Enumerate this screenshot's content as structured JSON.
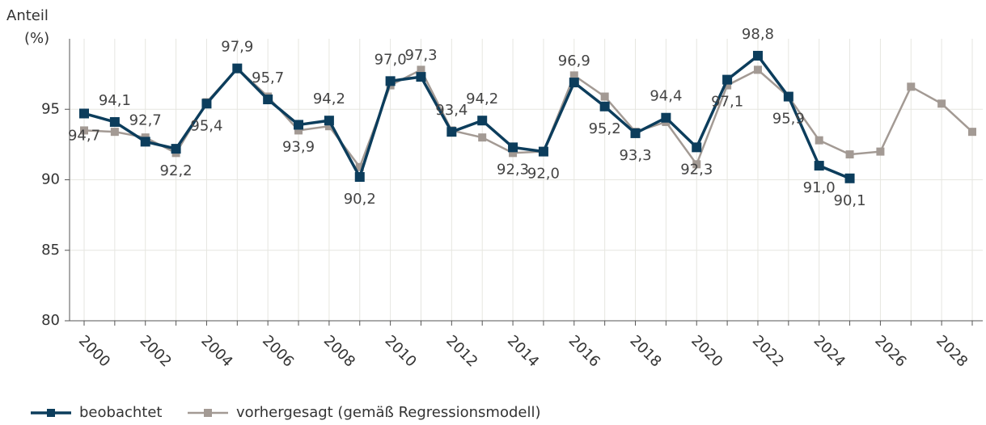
{
  "chart_data": {
    "type": "line",
    "y_label": "Anteil",
    "y_unit": "(%)",
    "categories": [
      "2000",
      null,
      "2002",
      null,
      "2004",
      null,
      "2006",
      null,
      "2008",
      null,
      "2010",
      null,
      "2012",
      null,
      "2014",
      null,
      "2016",
      null,
      "2018",
      null,
      "2020",
      null,
      "2022",
      null,
      "2024",
      null,
      "2026",
      null,
      "2028",
      null
    ],
    "series": [
      {
        "name": "beobachtet",
        "color": "#0c3d5c",
        "values": [
          94.7,
          94.1,
          92.7,
          92.2,
          95.4,
          97.9,
          95.7,
          93.9,
          94.2,
          90.2,
          97.0,
          97.3,
          93.4,
          94.2,
          92.3,
          92.0,
          96.9,
          95.2,
          93.3,
          94.4,
          92.3,
          97.1,
          98.8,
          95.9,
          91.0,
          90.1,
          null,
          null,
          null,
          null
        ],
        "value_labels": [
          "94,7",
          "94,1",
          "92,7",
          "92,2",
          "95,4",
          "97,9",
          "95,7",
          "93,9",
          "94,2",
          "90,2",
          "97,0",
          "97,3",
          "93,4",
          "94,2",
          "92,3",
          "92,0",
          "96,9",
          "95,2",
          "93,3",
          "94,4",
          "92,3",
          "97,1",
          "98,8",
          "95,9",
          "91,0",
          "90,1",
          null,
          null,
          null,
          null
        ]
      },
      {
        "name": "vorhergesagt (gemäß Regressionsmodell)",
        "color": "#a39a94",
        "values": [
          93.5,
          93.4,
          93.0,
          91.9,
          95.5,
          97.9,
          95.9,
          93.5,
          93.8,
          90.9,
          96.7,
          97.8,
          93.5,
          93.0,
          91.9,
          92.0,
          97.4,
          95.9,
          93.4,
          94.1,
          91.1,
          96.7,
          97.8,
          95.9,
          92.8,
          91.8,
          92.0,
          96.6,
          95.4,
          93.4
        ]
      }
    ],
    "ylim": [
      80,
      100
    ],
    "yticks": [
      80,
      85,
      90,
      95
    ],
    "grid": true
  }
}
